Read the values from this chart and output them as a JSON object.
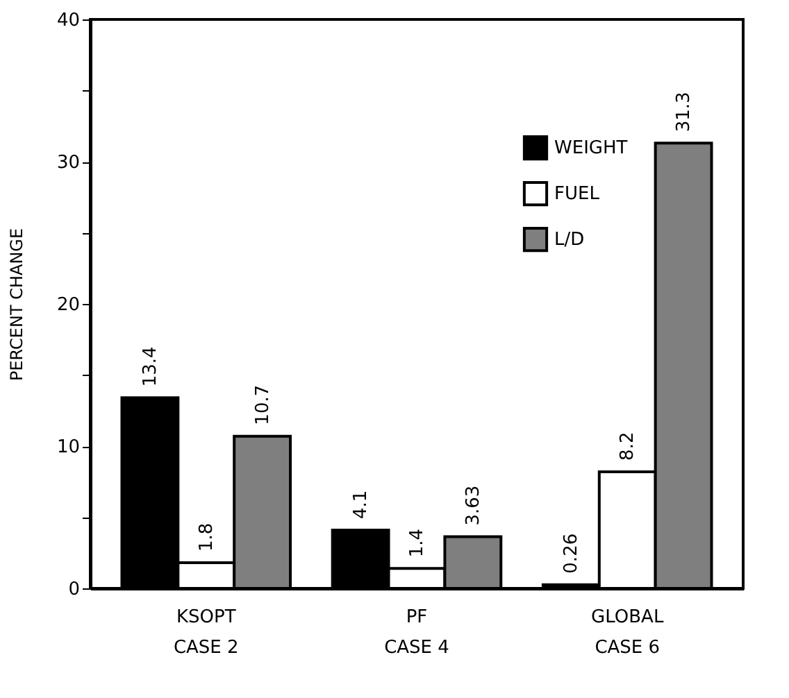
{
  "chart_data": {
    "type": "bar",
    "ylabel": "PERCENT CHANGE",
    "categories": [
      "KSOPT\nCASE 2",
      "PF\nCASE 4",
      "GLOBAL\nCASE 6"
    ],
    "series": [
      {
        "name": "WEIGHT",
        "color": "#000000",
        "values": [
          13.4,
          4.1,
          0.26
        ]
      },
      {
        "name": "FUEL",
        "color": "#ffffff",
        "values": [
          1.8,
          1.4,
          8.2
        ]
      },
      {
        "name": "L/D",
        "color": "#7f7f7f",
        "values": [
          10.7,
          3.63,
          31.3
        ]
      }
    ],
    "ylim": [
      0,
      40
    ],
    "yticks": [
      0,
      {
        "value": 5,
        "label": null
      },
      10,
      {
        "value": 15,
        "label": null
      },
      20,
      {
        "value": 25,
        "label": null
      },
      30,
      {
        "value": 35,
        "label": null
      },
      40
    ],
    "data_labels": true,
    "grid": false,
    "legend": "top right"
  }
}
